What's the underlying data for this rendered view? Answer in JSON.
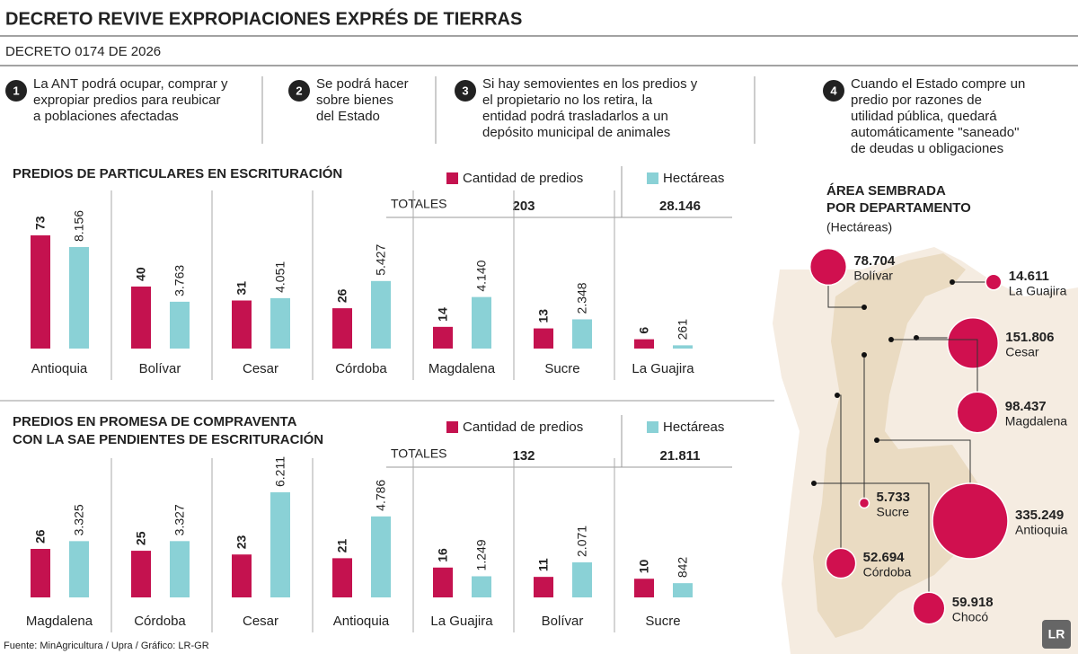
{
  "header": {
    "title": "DECRETO REVIVE EXPROPIACIONES EXPRÉS DE TIERRAS",
    "subtitle": "DECRETO 0174 DE 2026"
  },
  "points": [
    {
      "number": "1",
      "lines": [
        "La ANT podrá ocupar, comprar y",
        "expropiar predios para reubicar",
        "a poblaciones afectadas"
      ]
    },
    {
      "number": "2",
      "lines": [
        "Se podrá hacer",
        "sobre bienes",
        "del Estado"
      ]
    },
    {
      "number": "3",
      "lines": [
        "Si hay semovientes en los predios y",
        "el propietario no los retira, la",
        "entidad podrá trasladarlos a un",
        "depósito municipal de animales"
      ]
    },
    {
      "number": "4",
      "lines": [
        "Cuando el Estado compre un",
        "predio por razones de",
        "utilidad pública, quedará",
        "automáticamente \"saneado\"",
        "de deudas u obligaciones"
      ]
    }
  ],
  "chart_data": [
    {
      "type": "bar",
      "title_lines": [
        "PREDIOS DE PARTICULARES EN ESCRITURACIÓN"
      ],
      "categories": [
        "Antioquia",
        "Bolívar",
        "Cesar",
        "Córdoba",
        "Magdalena",
        "Sucre",
        "La Guajira"
      ],
      "series": [
        {
          "name": "Cantidad de predios",
          "color": "#c4124f",
          "values": [
            73,
            40,
            31,
            26,
            14,
            13,
            6
          ]
        },
        {
          "name": "Hectáreas",
          "color": "#8ad1d6",
          "values": [
            8156,
            3763,
            4051,
            5427,
            4140,
            2348,
            261
          ],
          "value_labels": [
            "8.156",
            "3.763",
            "4.051",
            "5.427",
            "4.140",
            "2.348",
            "261"
          ]
        }
      ],
      "totals_label": "TOTALES",
      "totals": [
        "203",
        "28.146"
      ]
    },
    {
      "type": "bar",
      "title_lines": [
        "PREDIOS EN PROMESA DE COMPRAVENTA",
        "CON LA SAE PENDIENTES DE ESCRITURACIÓN"
      ],
      "categories": [
        "Magdalena",
        "Córdoba",
        "Cesar",
        "Antioquia",
        "La Guajira",
        "Bolívar",
        "Sucre"
      ],
      "series": [
        {
          "name": "Cantidad de predios",
          "color": "#c4124f",
          "values": [
            26,
            25,
            23,
            21,
            16,
            11,
            10
          ]
        },
        {
          "name": "Hectáreas",
          "color": "#8ad1d6",
          "values": [
            3325,
            3327,
            6211,
            4786,
            1249,
            2071,
            842
          ],
          "value_labels": [
            "3.325",
            "3.327",
            "6.211",
            "4.786",
            "1.249",
            "2.071",
            "842"
          ]
        }
      ],
      "totals_label": "TOTALES",
      "totals": [
        "132",
        "21.811"
      ]
    },
    {
      "type": "bubble",
      "title_lines": [
        "ÁREA SEMBRADA",
        "POR DEPARTAMENTO"
      ],
      "subtitle": "(Hectáreas)",
      "color": "#d0104f",
      "categories": [
        "Bolívar",
        "La Guajira",
        "Cesar",
        "Magdalena",
        "Sucre",
        "Antioquia",
        "Córdoba",
        "Chocó"
      ],
      "values": [
        78704,
        14611,
        151806,
        98437,
        5733,
        335249,
        52694,
        59918
      ],
      "value_labels": [
        "78.704",
        "14.611",
        "151.806",
        "98.437",
        "5.733",
        "335.249",
        "52.694",
        "59.918"
      ]
    }
  ],
  "source": "Fuente: MinAgricultura / Upra / Gráfico: LR-GR",
  "logo": "LR"
}
